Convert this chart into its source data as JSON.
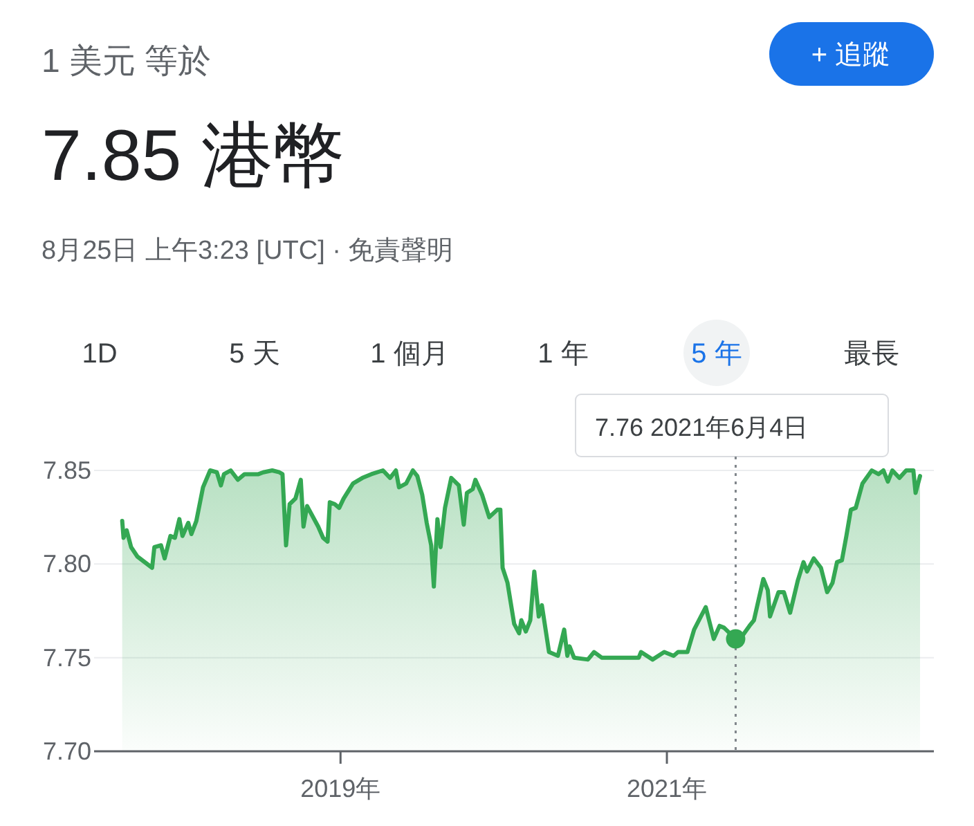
{
  "chart_data": {
    "type": "area",
    "subtitle": "1 美元 等於",
    "title": "7.85 港幣",
    "annotations": [
      "8月25日 上午3:23 [UTC] · 免責聲明",
      "+ 追蹤",
      "1D",
      "5 天",
      "1 個月",
      "1 年",
      "5 年",
      "最長",
      "7.76  2021年6月4日"
    ],
    "x": [
      "2017-08-30",
      "2017-09-02",
      "2017-09-09",
      "2017-09-19",
      "2017-10-03",
      "2017-11-05",
      "2017-11-10",
      "2017-11-25",
      "2017-12-03",
      "2017-12-16",
      "2017-12-26",
      "2018-01-05",
      "2018-01-12",
      "2018-01-25",
      "2018-02-01",
      "2018-02-12",
      "2018-02-27",
      "2018-03-15",
      "2018-03-30",
      "2018-04-08",
      "2018-04-15",
      "2018-04-30",
      "2018-05-16",
      "2018-05-31",
      "2018-07-01",
      "2018-07-12",
      "2018-08-01",
      "2018-08-17",
      "2018-08-24",
      "2018-09-01",
      "2018-09-09",
      "2018-09-22",
      "2018-10-04",
      "2018-10-10",
      "2018-10-18",
      "2018-11-12",
      "2018-11-23",
      "2018-12-03",
      "2018-12-08",
      "2018-12-19",
      "2018-12-29",
      "2019-01-08",
      "2019-01-29",
      "2019-02-19",
      "2019-03-11",
      "2019-04-06",
      "2019-04-22",
      "2019-05-05",
      "2019-05-12",
      "2019-05-28",
      "2019-06-12",
      "2019-06-22",
      "2019-07-03",
      "2019-07-13",
      "2019-07-23",
      "2019-07-29",
      "2019-08-06",
      "2019-08-13",
      "2019-08-23",
      "2019-09-06",
      "2019-09-23",
      "2019-10-04",
      "2019-10-11",
      "2019-10-24",
      "2019-10-30",
      "2019-11-14",
      "2019-11-30",
      "2019-12-18",
      "2019-12-25",
      "2019-12-30",
      "2020-01-10",
      "2020-01-25",
      "2020-02-05",
      "2020-02-10",
      "2020-02-20",
      "2020-03-01",
      "2020-03-10",
      "2020-03-20",
      "2020-03-27",
      "2020-04-12",
      "2020-05-02",
      "2020-05-16",
      "2020-05-23",
      "2020-05-28",
      "2020-06-07",
      "2020-07-08",
      "2020-07-22",
      "2020-08-08",
      "2020-09-14",
      "2020-10-30",
      "2020-11-04",
      "2020-11-30",
      "2020-12-26",
      "2021-01-16",
      "2021-01-26",
      "2021-02-16",
      "2021-03-03",
      "2021-03-29",
      "2021-04-16",
      "2021-04-29",
      "2021-05-09",
      "2021-06-04",
      "2021-06-20",
      "2021-07-05",
      "2021-07-15",
      "2021-08-05",
      "2021-08-15",
      "2021-08-20",
      "2021-09-08",
      "2021-09-20",
      "2021-10-04",
      "2021-10-21",
      "2021-11-03",
      "2021-11-11",
      "2021-11-26",
      "2021-12-12",
      "2021-12-26",
      "2022-01-07",
      "2022-01-17",
      "2022-01-28",
      "2022-02-07",
      "2022-02-17",
      "2022-02-28",
      "2022-03-15",
      "2022-04-05",
      "2022-04-20",
      "2022-05-01",
      "2022-05-11",
      "2022-05-21",
      "2022-06-06",
      "2022-06-21",
      "2022-07-07",
      "2022-07-12",
      "2022-07-22"
    ],
    "series": [
      {
        "color": "#34a853",
        "values": [
          7.823,
          7.814,
          7.818,
          7.809,
          7.804,
          7.798,
          7.809,
          7.81,
          7.803,
          7.815,
          7.814,
          7.824,
          7.815,
          7.822,
          7.816,
          7.823,
          7.841,
          7.85,
          7.849,
          7.842,
          7.848,
          7.85,
          7.845,
          7.848,
          7.848,
          7.849,
          7.85,
          7.849,
          7.848,
          7.81,
          7.832,
          7.835,
          7.845,
          7.82,
          7.831,
          7.82,
          7.814,
          7.812,
          7.833,
          7.832,
          7.83,
          7.835,
          7.843,
          7.846,
          7.848,
          7.85,
          7.846,
          7.85,
          7.841,
          7.843,
          7.85,
          7.847,
          7.837,
          7.822,
          7.81,
          7.788,
          7.824,
          7.809,
          7.83,
          7.846,
          7.842,
          7.821,
          7.838,
          7.84,
          7.845,
          7.837,
          7.825,
          7.829,
          7.829,
          7.798,
          7.79,
          7.768,
          7.763,
          7.77,
          7.764,
          7.77,
          7.796,
          7.772,
          7.778,
          7.753,
          7.751,
          7.765,
          7.751,
          7.756,
          7.75,
          7.749,
          7.753,
          7.75,
          7.75,
          7.75,
          7.753,
          7.749,
          7.753,
          7.751,
          7.753,
          7.753,
          7.765,
          7.777,
          7.76,
          7.767,
          7.766,
          7.76,
          7.762,
          7.767,
          7.77,
          7.792,
          7.786,
          7.772,
          7.785,
          7.785,
          7.774,
          7.791,
          7.801,
          7.796,
          7.803,
          7.798,
          7.785,
          7.79,
          7.801,
          7.802,
          7.815,
          7.829,
          7.83,
          7.843,
          7.85,
          7.848,
          7.85,
          7.844,
          7.85,
          7.846,
          7.85,
          7.85,
          7.838,
          7.847
        ]
      }
    ],
    "xlim": [
      "2017-06-28",
      "2022-08-22"
    ],
    "xticks": [
      {
        "value": "2019-01-01",
        "label": "2019年"
      },
      {
        "value": "2021-01-01",
        "label": "2021年"
      }
    ],
    "ylim": [
      7.7,
      7.85
    ],
    "yticks": [
      {
        "value": 7.7,
        "label": "7.70"
      },
      {
        "value": 7.75,
        "label": "7.75"
      },
      {
        "value": 7.8,
        "label": "7.80"
      },
      {
        "value": 7.85,
        "label": "7.85"
      }
    ],
    "grid": "y",
    "ref_lines": [
      {
        "axis": "x",
        "value": "2021-06-04",
        "color": "#80868b",
        "line_style": "dotted"
      }
    ]
  }
}
